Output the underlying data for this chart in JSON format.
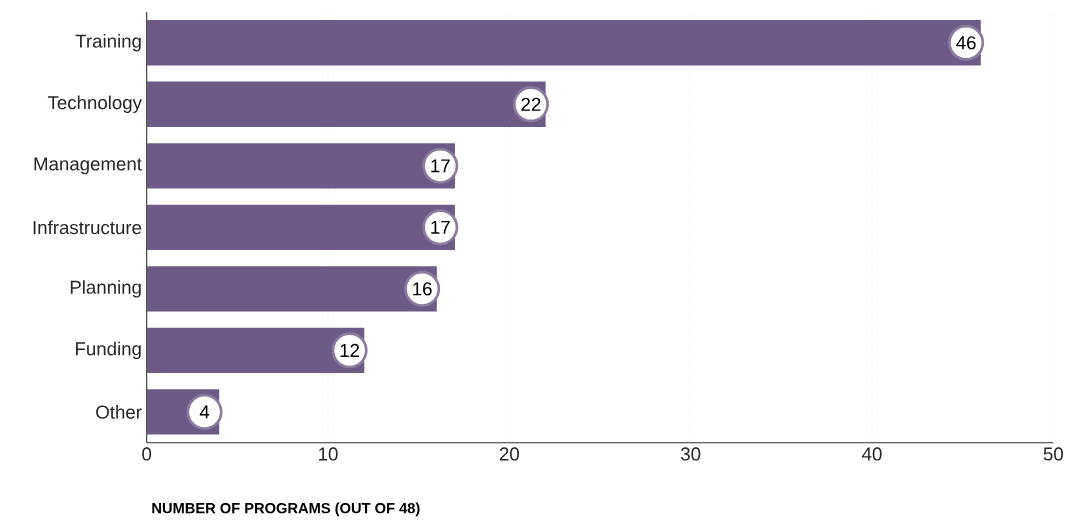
{
  "chart_data": {
    "type": "bar",
    "orientation": "horizontal",
    "xlabel": "NUMBER OF PROGRAMS (OUT OF 48)",
    "categories": [
      "Training",
      "Technology",
      "Management",
      "Infrastructure",
      "Planning",
      "Funding",
      "Other"
    ],
    "values": [
      46,
      22,
      17,
      17,
      16,
      12,
      4
    ],
    "color": "#6e5a86",
    "xlim": [
      0,
      50
    ],
    "xticks": [
      0,
      10,
      20,
      30,
      40,
      50
    ],
    "grid": "x",
    "data_labels": true
  }
}
